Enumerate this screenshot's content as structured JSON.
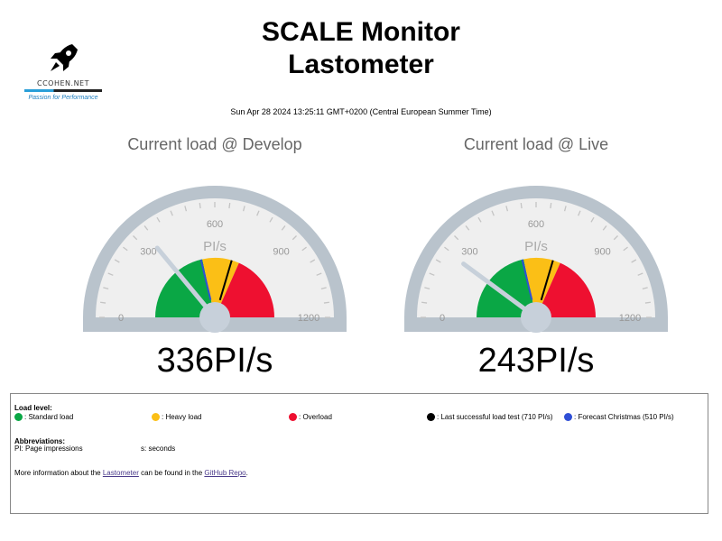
{
  "logo": {
    "icon": "rocket-icon",
    "brand": "CCOHEN.NET",
    "tagline": "Passion for Performance"
  },
  "header": {
    "title_line1": "SCALE Monitor",
    "title_line2": "Lastometer",
    "timestamp": "Sun Apr 28 2024 13:25:11 GMT+0200 (Central European Summer Time)"
  },
  "gauges": [
    {
      "title": "Current load @ Develop",
      "value": 336,
      "value_text": "336PI/s",
      "unit": "PI/s",
      "ticks": [
        "0",
        "300",
        "600",
        "900",
        "1200"
      ],
      "max": 1200,
      "last_test": 710,
      "forecast": 510
    },
    {
      "title": "Current load @ Live",
      "value": 243,
      "value_text": "243PI/s",
      "unit": "PI/s",
      "ticks": [
        "0",
        "300",
        "600",
        "900",
        "1200"
      ],
      "max": 1200,
      "last_test": 710,
      "forecast": 510
    }
  ],
  "colors": {
    "standard": "#0aa745",
    "heavy": "#fbbf16",
    "overload": "#ee1030",
    "last_test": "#000000",
    "forecast": "#2f4fd6",
    "needle": "#c7d0da",
    "frame": "#b9c3cc",
    "dial": "#efefef"
  },
  "legend": {
    "load_level_title": "Load level:",
    "standard": ": Standard load",
    "heavy": ": Heavy load",
    "overload": ": Overload",
    "last_test": ": Last successful load test (710 PI/s)",
    "forecast": ": Forecast Christmas (510 PI/s)",
    "abbrev_title": "Abbreviations:",
    "abbrev_pi": "PI: Page impressions",
    "abbrev_s": "s: seconds",
    "more_prefix": "More information about the ",
    "more_link1": "Lastometer",
    "more_middle": " can be found in the ",
    "more_link2": "GitHub Repo",
    "more_suffix": "."
  }
}
